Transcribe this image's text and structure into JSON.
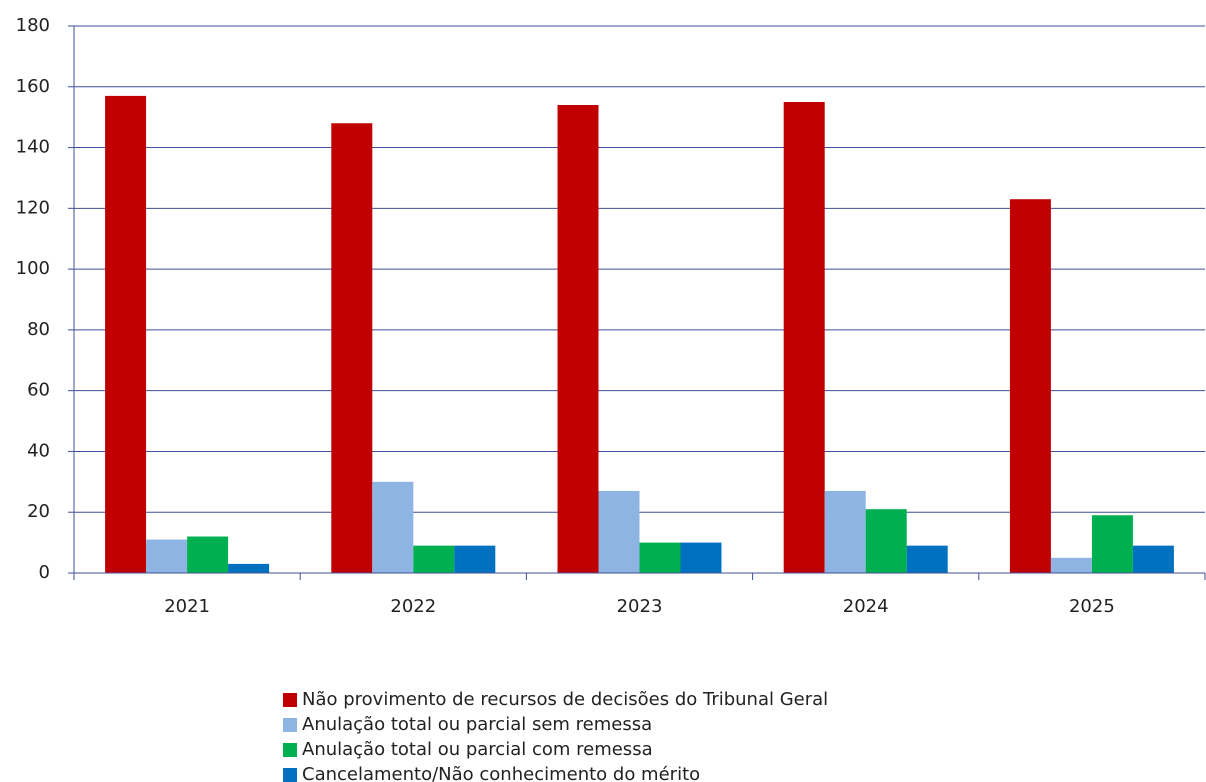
{
  "chart_data": {
    "type": "bar",
    "categories": [
      "2021",
      "2022",
      "2023",
      "2024",
      "2025"
    ],
    "series": [
      {
        "name": "Não provimento de recursos de decisões do Tribunal Geral",
        "color": "#c00000",
        "values": [
          157,
          148,
          154,
          155,
          123
        ]
      },
      {
        "name": "Anulação total ou parcial sem remessa",
        "color": "#8eb4e3",
        "values": [
          11,
          30,
          27,
          27,
          5
        ]
      },
      {
        "name": "Anulação total ou parcial com remessa",
        "color": "#00b050",
        "values": [
          12,
          9,
          10,
          21,
          19
        ]
      },
      {
        "name": "Cancelamento/Não conhecimento do mérito",
        "color": "#0070c0",
        "values": [
          3,
          9,
          10,
          9,
          9
        ]
      }
    ],
    "ylim": [
      0,
      180
    ],
    "yticks": [
      0,
      20,
      40,
      60,
      80,
      100,
      120,
      140,
      160,
      180
    ],
    "grid": true,
    "legend": "bottom"
  }
}
